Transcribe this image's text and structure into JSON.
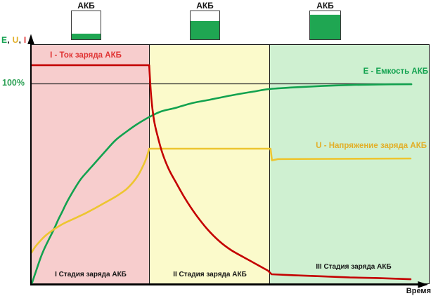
{
  "colors": {
    "background": "#FFFFFF",
    "axis": "#000000",
    "border": "#1C1C1C",
    "stage1_bg": "#F7CDCD",
    "stage2_bg": "#FBFACB",
    "stage3_bg": "#CFF0D1",
    "capacity_green": "#12A24F",
    "tick_green": "#2FA257",
    "current_red": "#C40000",
    "current_label_red": "#E03434",
    "voltage_yellow": "#EDC530",
    "voltage_label_yellow": "#E2AF28",
    "reference_line": "#2B2B2B",
    "text_black": "#151515",
    "battery_green": "#1FA652",
    "battery_border": "#3A3A3A"
  },
  "batteries": [
    {
      "label": "АКБ",
      "fill_percent": 19
    },
    {
      "label": "АКБ",
      "fill_percent": 65
    },
    {
      "label": "АКБ",
      "fill_percent": 88
    }
  ],
  "axis_labels": {
    "y_parts": [
      {
        "text": "E",
        "color_key": "capacity_green"
      },
      {
        "text": ", ",
        "color_key": "text_black"
      },
      {
        "text": "U",
        "color_key": "voltage_label_yellow"
      },
      {
        "text": ", ",
        "color_key": "text_black"
      },
      {
        "text": "I",
        "color_key": "current_label_red"
      }
    ],
    "x_label": "Время"
  },
  "stages": [
    {
      "label": "I Стадия заряда АКБ",
      "t_start": 0,
      "t_end": 29.6,
      "bg_color_key": "stage1_bg"
    },
    {
      "label": "II Стадия заряда АКБ",
      "t_start": 29.6,
      "t_end": 59.9,
      "bg_color_key": "stage2_bg"
    },
    {
      "label": "III Стадия заряда АКБ",
      "t_start": 59.9,
      "t_end": 100,
      "bg_color_key": "stage3_bg"
    }
  ],
  "curve_labels": {
    "current": "I - Ток заряда АКБ",
    "capacity": "E - Емкость АКБ",
    "voltage": "U - Напряжение заряда АКБ"
  },
  "chart_data": {
    "type": "line",
    "x_axis": {
      "label": "Время",
      "unit": "time (normalized 0-100, unlabeled axis)",
      "range": [
        0,
        100
      ]
    },
    "y_axis": {
      "label": "E, U, I",
      "unit": "percent of full capacity",
      "range": [
        0,
        120
      ],
      "reference": {
        "label": "100%",
        "value": 100
      }
    },
    "stage_boundaries_t": [
      29.6,
      59.9
    ],
    "reference_line": {
      "label": "100%",
      "value": 100,
      "t_start": 0,
      "t_end": 95.6
    },
    "series": [
      {
        "name": "E - Емкость АКБ",
        "color_key": "capacity_green",
        "segments": [
          {
            "shape": "smooth",
            "points": [
              [
                0,
                0
              ],
              [
                0.9,
                5.3
              ],
              [
                2.1,
                12.3
              ],
              [
                3,
                16.8
              ],
              [
                4.1,
                21.4
              ],
              [
                5.6,
                27.3
              ],
              [
                6.7,
                32.2
              ],
              [
                7.6,
                35.7
              ],
              [
                8.8,
                40.6
              ],
              [
                10.6,
                46.9
              ],
              [
                12.3,
                52.2
              ],
              [
                14.1,
                56.4
              ],
              [
                15.5,
                59.5
              ],
              [
                18.5,
                66.2
              ],
              [
                21.1,
                71.8
              ],
              [
                23.8,
                76
              ],
              [
                26.6,
                79.9
              ],
              [
                29.6,
                83.4
              ],
              [
                32.6,
                86.2
              ],
              [
                36.1,
                87.9
              ],
              [
                40.5,
                90.4
              ],
              [
                44.9,
                92.1
              ],
              [
                50.2,
                94.2
              ],
              [
                55.5,
                96
              ],
              [
                59.9,
                97.4
              ],
              [
                66,
                98.2
              ],
              [
                73.1,
                98.9
              ],
              [
                80.1,
                99.4
              ],
              [
                87.2,
                99.7
              ],
              [
                95.6,
                99.8
              ]
            ]
          }
        ]
      },
      {
        "name": "U - Напряжение заряда АКБ",
        "color_key": "voltage_yellow",
        "segments": [
          {
            "shape": "smooth",
            "points": [
              [
                0,
                15.8
              ],
              [
                0.9,
                18.6
              ],
              [
                2.1,
                21.4
              ],
              [
                3.5,
                24.2
              ],
              [
                5.6,
                27.3
              ],
              [
                7.9,
                30.1
              ],
              [
                10.6,
                32.6
              ],
              [
                13.2,
                35
              ],
              [
                15.9,
                37.8
              ],
              [
                18.8,
                41
              ],
              [
                21.5,
                44.1
              ],
              [
                23.8,
                47.3
              ],
              [
                25.5,
                50.8
              ],
              [
                26.9,
                54.6
              ],
              [
                28,
                58.8
              ],
              [
                28.9,
                63
              ],
              [
                29.6,
                67.6
              ]
            ]
          },
          {
            "shape": "line",
            "points": [
              [
                29.6,
                67.6
              ],
              [
                60.15,
                67.6
              ],
              [
                60.5,
                61.8
              ],
              [
                62,
                62.4
              ],
              [
                95.4,
                62.7
              ]
            ]
          }
        ]
      },
      {
        "name": "I - Ток заряда АКБ",
        "color_key": "current_red",
        "segments": [
          {
            "shape": "line",
            "points": [
              [
                0,
                109.3
              ],
              [
                29.6,
                109.3
              ]
            ]
          },
          {
            "shape": "smooth",
            "points": [
              [
                29.6,
                109.3
              ],
              [
                30.1,
                93.5
              ],
              [
                30.8,
                82
              ],
              [
                31.7,
                74
              ],
              [
                32.9,
                65.5
              ],
              [
                34.5,
                57.5
              ],
              [
                36.4,
                50.5
              ],
              [
                38.7,
                42.5
              ],
              [
                41.4,
                34.5
              ],
              [
                44.2,
                27.5
              ],
              [
                47.2,
                21.5
              ],
              [
                50.2,
                17
              ],
              [
                53.3,
                13.5
              ],
              [
                56.3,
                10.2
              ],
              [
                59.5,
                6.7
              ]
            ]
          },
          {
            "shape": "line",
            "points": [
              [
                59.5,
                6.7
              ],
              [
                60.4,
                4.9
              ],
              [
                66,
                4.4
              ],
              [
                73.1,
                3.9
              ],
              [
                80.1,
                3.3
              ],
              [
                87.1,
                3
              ],
              [
                95.4,
                2.4
              ]
            ]
          }
        ]
      }
    ]
  }
}
